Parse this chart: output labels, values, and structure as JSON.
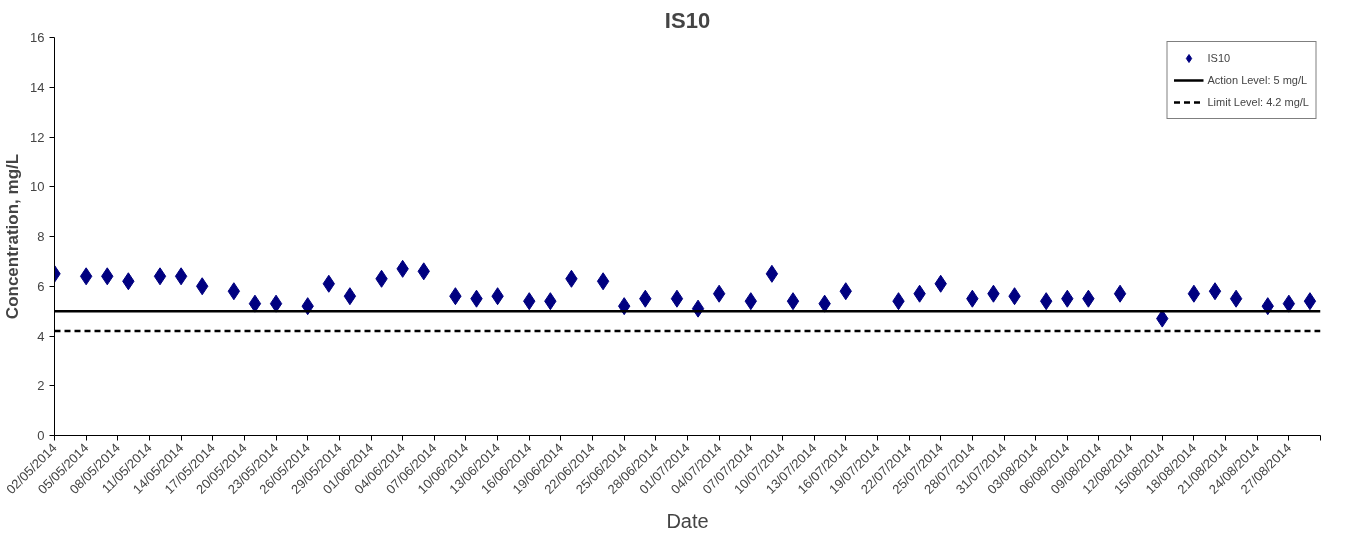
{
  "chart_data": {
    "type": "scatter",
    "title": "IS10",
    "xlabel": "Date",
    "ylabel": "Concentration, mg/L",
    "x": [
      "2014-05-02",
      "2014-05-05",
      "2014-05-07",
      "2014-05-09",
      "2014-05-12",
      "2014-05-14",
      "2014-05-16",
      "2014-05-19",
      "2014-05-21",
      "2014-05-23",
      "2014-05-26",
      "2014-05-28",
      "2014-05-30",
      "2014-06-02",
      "2014-06-04",
      "2014-06-06",
      "2014-06-09",
      "2014-06-11",
      "2014-06-13",
      "2014-06-16",
      "2014-06-18",
      "2014-06-20",
      "2014-06-23",
      "2014-06-25",
      "2014-06-27",
      "2014-06-30",
      "2014-07-02",
      "2014-07-04",
      "2014-07-07",
      "2014-07-09",
      "2014-07-11",
      "2014-07-14",
      "2014-07-16",
      "2014-07-21",
      "2014-07-23",
      "2014-07-25",
      "2014-07-28",
      "2014-07-30",
      "2014-08-01",
      "2014-08-04",
      "2014-08-06",
      "2014-08-08",
      "2014-08-11",
      "2014-08-15",
      "2014-08-18",
      "2014-08-20",
      "2014-08-22",
      "2014-08-25",
      "2014-08-27",
      "2014-08-29"
    ],
    "series": [
      {
        "name": "IS10",
        "color": "#000080",
        "values": [
          6.5,
          6.4,
          6.4,
          6.2,
          6.4,
          6.4,
          6.0,
          5.8,
          5.3,
          5.3,
          5.2,
          6.1,
          5.6,
          6.3,
          6.7,
          6.6,
          5.6,
          5.5,
          5.6,
          5.4,
          5.4,
          6.3,
          6.2,
          5.2,
          5.5,
          5.5,
          5.1,
          5.7,
          5.4,
          6.5,
          5.4,
          5.3,
          5.8,
          5.4,
          5.7,
          6.1,
          5.5,
          5.7,
          5.6,
          5.4,
          5.5,
          5.5,
          5.7,
          4.7,
          5.7,
          5.8,
          5.5,
          5.2,
          5.3,
          5.4
        ]
      }
    ],
    "ref_lines": [
      {
        "axis": "y",
        "value": 5,
        "label": "Action Level: 5 mg/L",
        "color": "#000000",
        "line_style": "solid"
      },
      {
        "axis": "y",
        "value": 4.2,
        "label": "Limit Level: 4.2 mg/L",
        "color": "#000000",
        "line_style": "dashed"
      }
    ],
    "marker": "diamond",
    "legend": "top right",
    "grid": false,
    "ylim": [
      0,
      16
    ],
    "yticks": [
      0,
      2,
      4,
      6,
      8,
      10,
      12,
      14,
      16
    ],
    "xlim": [
      "2014-05-02",
      "2014-08-30"
    ],
    "xticks": [
      {
        "value": "2014-05-02",
        "label": "02/05/2014"
      },
      {
        "value": "2014-05-05",
        "label": "05/05/2014"
      },
      {
        "value": "2014-05-08",
        "label": "08/05/2014"
      },
      {
        "value": "2014-05-11",
        "label": "11/05/2014"
      },
      {
        "value": "2014-05-14",
        "label": "14/05/2014"
      },
      {
        "value": "2014-05-17",
        "label": "17/05/2014"
      },
      {
        "value": "2014-05-20",
        "label": "20/05/2014"
      },
      {
        "value": "2014-05-23",
        "label": "23/05/2014"
      },
      {
        "value": "2014-05-26",
        "label": "26/05/2014"
      },
      {
        "value": "2014-05-29",
        "label": "29/05/2014"
      },
      {
        "value": "2014-06-01",
        "label": "01/06/2014"
      },
      {
        "value": "2014-06-04",
        "label": "04/06/2014"
      },
      {
        "value": "2014-06-07",
        "label": "07/06/2014"
      },
      {
        "value": "2014-06-10",
        "label": "10/06/2014"
      },
      {
        "value": "2014-06-13",
        "label": "13/06/2014"
      },
      {
        "value": "2014-06-16",
        "label": "16/06/2014"
      },
      {
        "value": "2014-06-19",
        "label": "19/06/2014"
      },
      {
        "value": "2014-06-22",
        "label": "22/06/2014"
      },
      {
        "value": "2014-06-25",
        "label": "25/06/2014"
      },
      {
        "value": "2014-06-28",
        "label": "28/06/2014"
      },
      {
        "value": "2014-07-01",
        "label": "01/07/2014"
      },
      {
        "value": "2014-07-04",
        "label": "04/07/2014"
      },
      {
        "value": "2014-07-07",
        "label": "07/07/2014"
      },
      {
        "value": "2014-07-10",
        "label": "10/07/2014"
      },
      {
        "value": "2014-07-13",
        "label": "13/07/2014"
      },
      {
        "value": "2014-07-16",
        "label": "16/07/2014"
      },
      {
        "value": "2014-07-19",
        "label": "19/07/2014"
      },
      {
        "value": "2014-07-22",
        "label": "22/07/2014"
      },
      {
        "value": "2014-07-25",
        "label": "25/07/2014"
      },
      {
        "value": "2014-07-28",
        "label": "28/07/2014"
      },
      {
        "value": "2014-07-31",
        "label": "31/07/2014"
      },
      {
        "value": "2014-08-03",
        "label": "03/08/2014"
      },
      {
        "value": "2014-08-06",
        "label": "06/08/2014"
      },
      {
        "value": "2014-08-09",
        "label": "09/08/2014"
      },
      {
        "value": "2014-08-12",
        "label": "12/08/2014"
      },
      {
        "value": "2014-08-15",
        "label": "15/08/2014"
      },
      {
        "value": "2014-08-18",
        "label": "18/08/2014"
      },
      {
        "value": "2014-08-21",
        "label": "21/08/2014"
      },
      {
        "value": "2014-08-24",
        "label": "24/08/2014"
      },
      {
        "value": "2014-08-27",
        "label": "27/08/2014"
      },
      {
        "value": "2014-08-30",
        "label": null
      }
    ]
  }
}
